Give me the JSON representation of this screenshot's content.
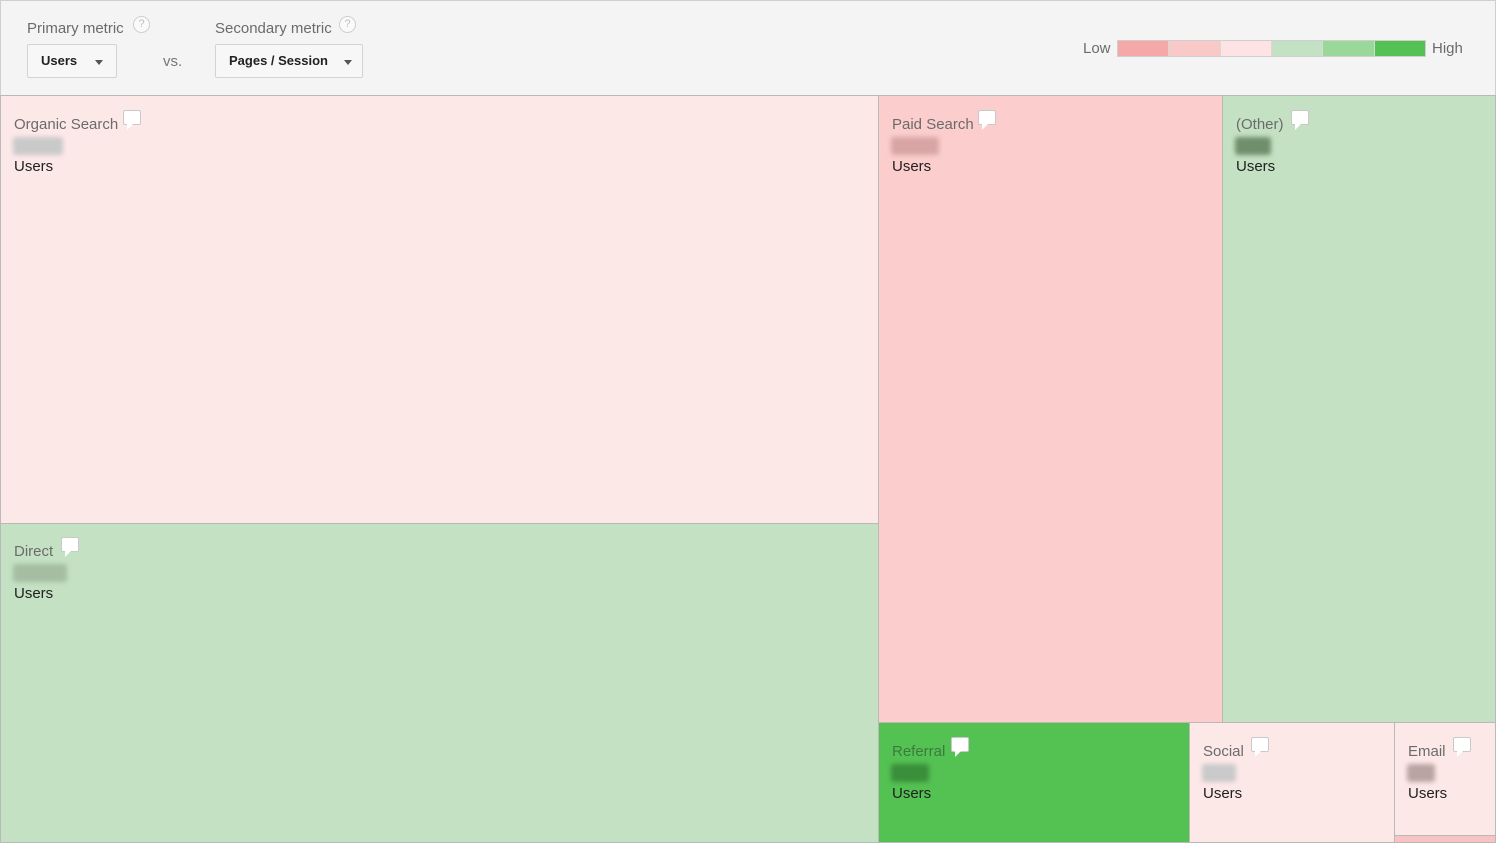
{
  "controls": {
    "primary_label": "Primary metric",
    "primary_value": "Users",
    "vs_label": "vs.",
    "secondary_label": "Secondary metric",
    "secondary_value": "Pages / Session",
    "help_glyph": "?"
  },
  "legend": {
    "low_label": "Low",
    "high_label": "High",
    "colors": [
      "#f4a9a8",
      "#f9c9c8",
      "#fde3e3",
      "#c3e2c3",
      "#99d899",
      "#53c153"
    ]
  },
  "tiles": [
    {
      "name": "Organic Search",
      "metric": "Users",
      "color": "#fde8e8",
      "value_color": "#c9c9c9"
    },
    {
      "name": "Paid Search",
      "metric": "Users",
      "color": "#fbcdcd",
      "value_color": "#d8a5a5"
    },
    {
      "name": "(Other)",
      "metric": "Users",
      "color": "#c5e1c3",
      "value_color": "#6f8f6c"
    },
    {
      "name": "Direct",
      "metric": "Users",
      "color": "#c5e1c3",
      "value_color": "#a4bda3"
    },
    {
      "name": "Referral",
      "metric": "Users",
      "color": "#54c153",
      "value_color": "#3a8f3a"
    },
    {
      "name": "Social",
      "metric": "Users",
      "color": "#fde8e8",
      "value_color": "#c9c9c9"
    },
    {
      "name": "Email",
      "metric": "Users",
      "color": "#fde8e8",
      "value_color": "#b9a3a3"
    },
    {
      "name": "",
      "metric": "",
      "color": "#f7c3c3",
      "value_color": ""
    }
  ]
}
